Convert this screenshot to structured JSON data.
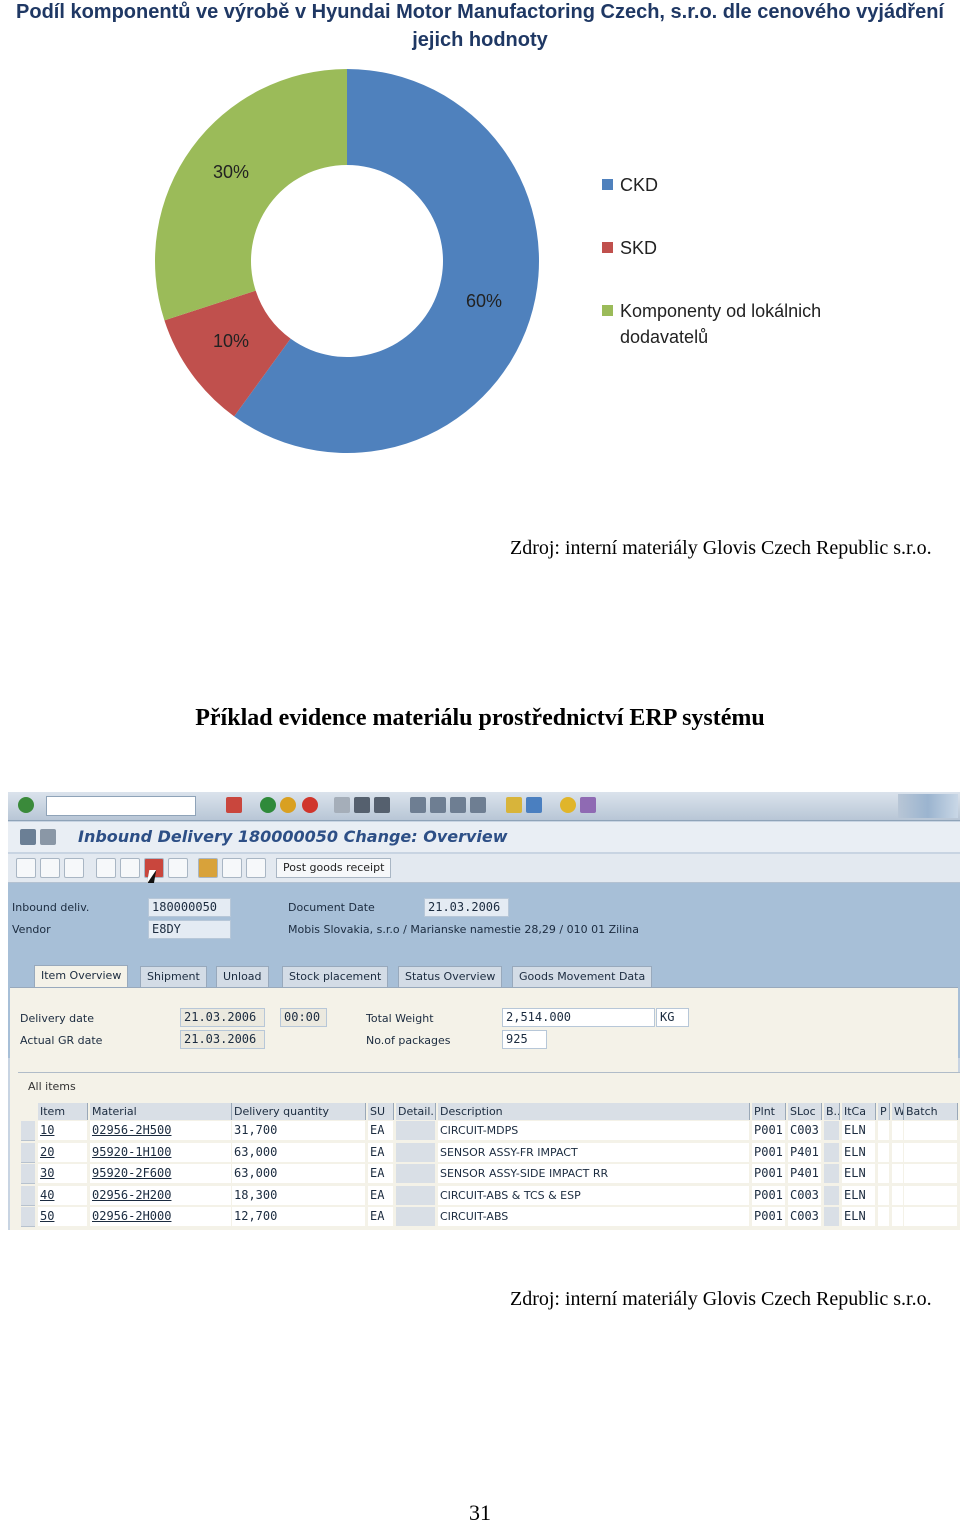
{
  "chart_title": "Podíl komponentů ve výrobě v Hyundai Motor Manufactoring Czech, s.r.o. dle cenového vyjádření jejich hodnoty",
  "chart_data": {
    "type": "pie",
    "subtype": "donut",
    "title": "Podíl komponentů ve výrobě v Hyundai Motor Manufactoring Czech, s.r.o. dle cenového vyjádření jejich hodnoty",
    "categories": [
      "CKD",
      "SKD",
      "Komponenty od lokálnich dodavatelů"
    ],
    "values": [
      60,
      10,
      30
    ],
    "labels": [
      "60%",
      "10%",
      "30%"
    ],
    "colors": [
      "#4f81bd",
      "#c0504d",
      "#9bbb59"
    ],
    "legend_position": "right"
  },
  "source_1": "Zdroj: interní materiály Glovis Czech Republic s.r.o.",
  "heading": "Příklad evidence materiálu prostřednictví ERP systému",
  "sap": {
    "title": "Inbound Delivery 180000050 Change: Overview",
    "post_goods_receipt": "Post goods receipt",
    "inbound_deliv_label": "Inbound deliv.",
    "inbound_deliv_value": "180000050",
    "vendor_label": "Vendor",
    "vendor_value": "E8DY",
    "document_date_label": "Document Date",
    "document_date_value": "21.03.2006",
    "vendor_address": "Mobis Slovakia, s.r.o / Marianske namestie 28,29 / 010 01 Zilina",
    "tabs": [
      "Item Overview",
      "Shipment",
      "Unload",
      "Stock placement",
      "Status Overview",
      "Goods Movement Data"
    ],
    "delivery_date_label": "Delivery date",
    "delivery_date_value": "21.03.2006",
    "delivery_time_value": "00:00",
    "actual_gr_date_label": "Actual GR date",
    "actual_gr_date_value": "21.03.2006",
    "total_weight_label": "Total Weight",
    "total_weight_value": "2,514.000",
    "weight_unit": "KG",
    "packages_label": "No.of packages",
    "packages_value": "925",
    "all_items": "All items",
    "columns": [
      "Item",
      "Material",
      "Delivery quantity",
      "SU",
      "Detail...",
      "Description",
      "Plnt",
      "SLoc",
      "B..",
      "ItCa",
      "P",
      "W.",
      "Batch"
    ],
    "rows": [
      {
        "item": "10",
        "material": "02956-2H500",
        "qty": "31,700",
        "su": "EA",
        "desc": "CIRCUIT-MDPS",
        "plnt": "P001",
        "sloc": "C003",
        "itca": "ELN"
      },
      {
        "item": "20",
        "material": "95920-1H100",
        "qty": "63,000",
        "su": "EA",
        "desc": "SENSOR ASSY-FR IMPACT",
        "plnt": "P001",
        "sloc": "P401",
        "itca": "ELN"
      },
      {
        "item": "30",
        "material": "95920-2F600",
        "qty": "63,000",
        "su": "EA",
        "desc": "SENSOR ASSY-SIDE IMPACT RR",
        "plnt": "P001",
        "sloc": "P401",
        "itca": "ELN"
      },
      {
        "item": "40",
        "material": "02956-2H200",
        "qty": "18,300",
        "su": "EA",
        "desc": "CIRCUIT-ABS & TCS & ESP",
        "plnt": "P001",
        "sloc": "C003",
        "itca": "ELN"
      },
      {
        "item": "50",
        "material": "02956-2H000",
        "qty": "12,700",
        "su": "EA",
        "desc": "CIRCUIT-ABS",
        "plnt": "P001",
        "sloc": "C003",
        "itca": "ELN"
      }
    ]
  },
  "source_2": "Zdroj: interní materiály Glovis Czech Republic s.r.o.",
  "page_number": "31"
}
